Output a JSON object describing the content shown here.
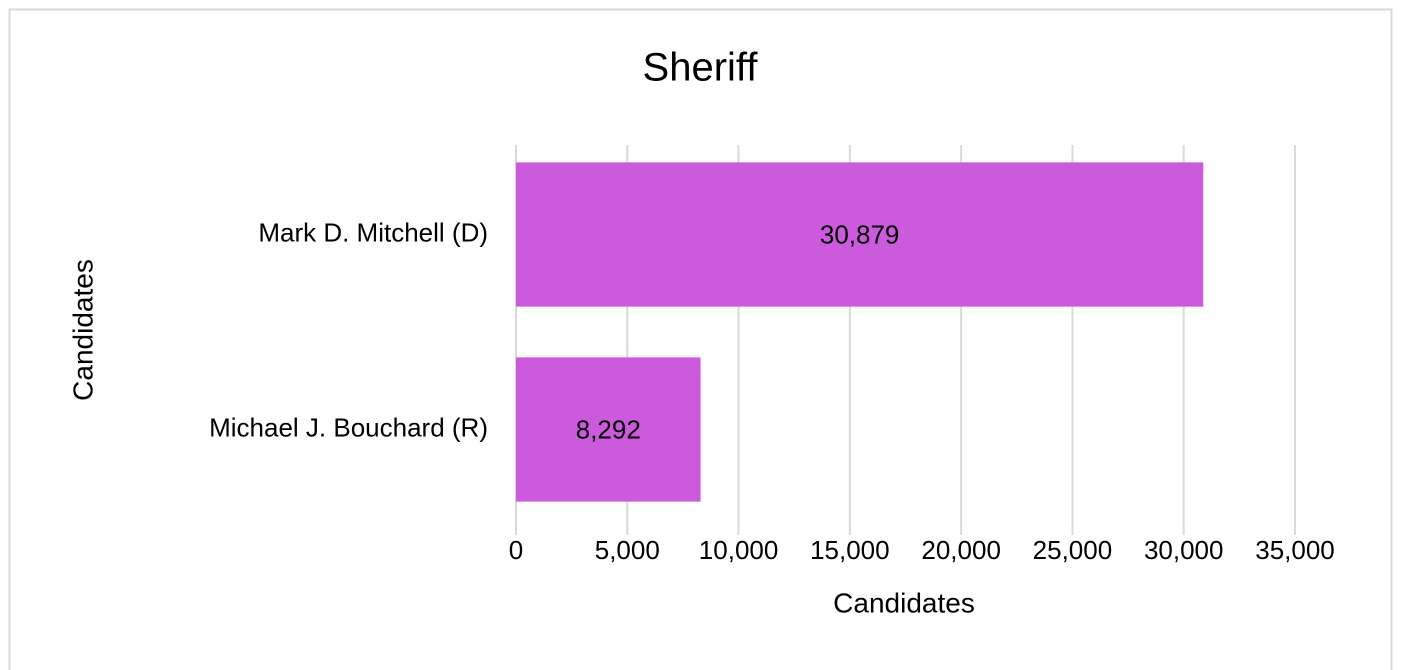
{
  "chart_data": {
    "type": "bar",
    "orientation": "horizontal",
    "title": "Sheriff",
    "x_label": "Candidates",
    "y_label": "Candidates",
    "categories": [
      "Mark D. Mitchell (D)",
      "Michael J. Bouchard (R)"
    ],
    "values": [
      30879,
      8292
    ],
    "value_labels": [
      "30,879",
      "8,292"
    ],
    "color": "#cc5add",
    "xlim": [
      0,
      35000
    ],
    "xticks": [
      0,
      {
        "value": 5000,
        "label": "5,000"
      },
      {
        "value": 10000,
        "label": "10,000"
      },
      {
        "value": 15000,
        "label": "15,000"
      },
      {
        "value": 20000,
        "label": "20,000"
      },
      {
        "value": 25000,
        "label": "25,000"
      },
      {
        "value": 30000,
        "label": "30,000"
      },
      {
        "value": 35000,
        "label": "35,000"
      }
    ],
    "grid": true
  }
}
